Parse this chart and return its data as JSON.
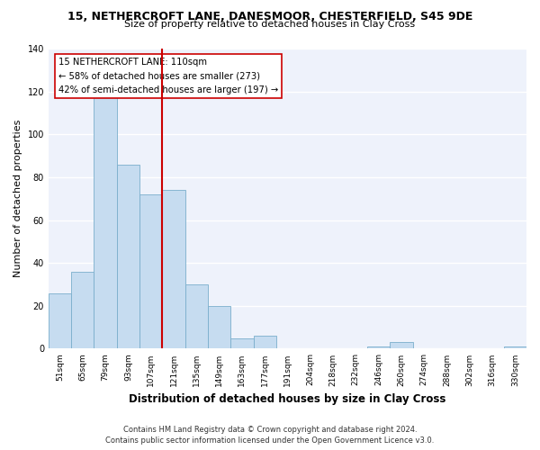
{
  "title": "15, NETHERCROFT LANE, DANESMOOR, CHESTERFIELD, S45 9DE",
  "subtitle": "Size of property relative to detached houses in Clay Cross",
  "xlabel": "Distribution of detached houses by size in Clay Cross",
  "ylabel": "Number of detached properties",
  "bar_labels": [
    "51sqm",
    "65sqm",
    "79sqm",
    "93sqm",
    "107sqm",
    "121sqm",
    "135sqm",
    "149sqm",
    "163sqm",
    "177sqm",
    "191sqm",
    "204sqm",
    "218sqm",
    "232sqm",
    "246sqm",
    "260sqm",
    "274sqm",
    "288sqm",
    "302sqm",
    "316sqm",
    "330sqm"
  ],
  "bar_heights": [
    26,
    36,
    118,
    86,
    72,
    74,
    30,
    20,
    5,
    6,
    0,
    0,
    0,
    0,
    1,
    3,
    0,
    0,
    0,
    0,
    1
  ],
  "bar_color": "#c6dcf0",
  "bar_edge_color": "#7aaecc",
  "vline_x": 4.5,
  "vline_color": "#cc0000",
  "annotation_title": "15 NETHERCROFT LANE: 110sqm",
  "annotation_line1": "← 58% of detached houses are smaller (273)",
  "annotation_line2": "42% of semi-detached houses are larger (197) →",
  "annotation_box_color": "#ffffff",
  "annotation_box_edge": "#cc0000",
  "ylim": [
    0,
    140
  ],
  "yticks": [
    0,
    20,
    40,
    60,
    80,
    100,
    120,
    140
  ],
  "footer1": "Contains HM Land Registry data © Crown copyright and database right 2024.",
  "footer2": "Contains public sector information licensed under the Open Government Licence v3.0.",
  "bg_color": "#ffffff",
  "plot_bg_color": "#eef2fb"
}
